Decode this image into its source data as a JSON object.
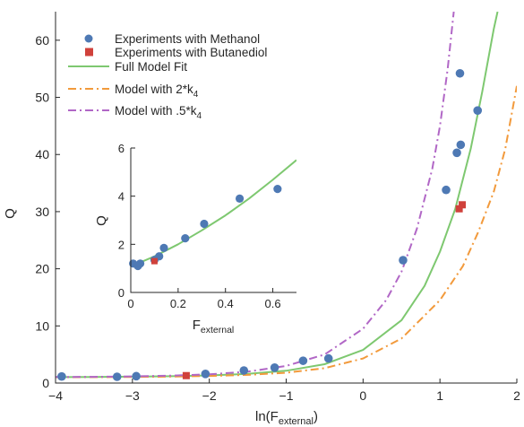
{
  "chart_data": [
    {
      "type": "line",
      "title": "",
      "xlabel_main": "ln(F",
      "xlabel_sub": "external",
      "xlabel_close": ")",
      "ylabel": "Q",
      "xlim": [
        -4,
        2
      ],
      "ylim": [
        0,
        65
      ],
      "xticks": [
        -4,
        -3,
        -2,
        -1,
        0,
        1,
        2
      ],
      "yticks": [
        0,
        10,
        20,
        30,
        40,
        50,
        60
      ],
      "xtick_labels": [
        "−4",
        "−3",
        "−2",
        "−1",
        "0",
        "1",
        "2"
      ],
      "ytick_labels": [
        "0",
        "10",
        "20",
        "30",
        "40",
        "50",
        "60"
      ],
      "legend_position": "top-left",
      "legend": {
        "methanol": "Experiments with Methanol",
        "butanediol": "Experiments with Butanediol",
        "full_fit": "Full Model Fit",
        "model_2k_prefix": "Model with 2*k",
        "model_2k_sub": "4",
        "model_half_prefix": "Model with .5*k",
        "model_half_sub": "4"
      },
      "series": [
        {
          "name": "Experiments with Methanol",
          "style": "markers-circle",
          "color": "#4e79b4",
          "points": [
            [
              -3.92,
              1.15
            ],
            [
              -3.2,
              1.1
            ],
            [
              -2.95,
              1.2
            ],
            [
              -2.05,
              1.6
            ],
            [
              -1.55,
              2.2
            ],
            [
              -1.15,
              2.7
            ],
            [
              -0.78,
              3.9
            ],
            [
              -0.45,
              4.3
            ],
            [
              0.52,
              21.5
            ],
            [
              1.08,
              33.8
            ],
            [
              1.22,
              40.3
            ],
            [
              1.26,
              54.2
            ],
            [
              1.27,
              41.7
            ],
            [
              1.49,
              47.7
            ]
          ]
        },
        {
          "name": "Experiments with Butanediol",
          "style": "markers-square",
          "color": "#d0413b",
          "points": [
            [
              -2.3,
              1.3
            ],
            [
              1.25,
              30.5
            ],
            [
              1.29,
              31.2
            ]
          ]
        },
        {
          "name": "Full Model Fit",
          "style": "solid",
          "color": "#7ec870",
          "points": [
            [
              -4.0,
              1.04
            ],
            [
              -3.5,
              1.06
            ],
            [
              -3.0,
              1.11
            ],
            [
              -2.5,
              1.2
            ],
            [
              -2.0,
              1.34
            ],
            [
              -1.5,
              1.6
            ],
            [
              -1.0,
              2.15
            ],
            [
              -0.5,
              3.3
            ],
            [
              0.0,
              5.8
            ],
            [
              0.5,
              11.0
            ],
            [
              0.8,
              17.0
            ],
            [
              1.0,
              23.0
            ],
            [
              1.2,
              30.5
            ],
            [
              1.4,
              41.0
            ],
            [
              1.55,
              51.0
            ],
            [
              1.7,
              62.0
            ],
            [
              1.75,
              65.0
            ]
          ]
        },
        {
          "name": "Model with 2*k4",
          "style": "dash-dot",
          "color": "#f29a3c",
          "points": [
            [
              -4.0,
              1.02
            ],
            [
              -3.5,
              1.04
            ],
            [
              -3.0,
              1.07
            ],
            [
              -2.5,
              1.13
            ],
            [
              -2.0,
              1.24
            ],
            [
              -1.5,
              1.43
            ],
            [
              -1.0,
              1.8
            ],
            [
              -0.5,
              2.6
            ],
            [
              0.0,
              4.3
            ],
            [
              0.5,
              7.8
            ],
            [
              1.0,
              14.5
            ],
            [
              1.3,
              20.5
            ],
            [
              1.5,
              26.5
            ],
            [
              1.7,
              33.5
            ],
            [
              1.85,
              41.0
            ],
            [
              2.0,
              52.0
            ]
          ]
        },
        {
          "name": "Model with .5*k4",
          "style": "dash-dot",
          "color": "#b167c6",
          "points": [
            [
              -4.0,
              1.05
            ],
            [
              -3.5,
              1.09
            ],
            [
              -3.0,
              1.16
            ],
            [
              -2.5,
              1.3
            ],
            [
              -2.0,
              1.52
            ],
            [
              -1.5,
              2.0
            ],
            [
              -1.0,
              3.0
            ],
            [
              -0.5,
              5.0
            ],
            [
              0.0,
              9.5
            ],
            [
              0.3,
              14.5
            ],
            [
              0.5,
              19.5
            ],
            [
              0.7,
              27.0
            ],
            [
              0.9,
              37.5
            ],
            [
              1.0,
              45.0
            ],
            [
              1.1,
              55.0
            ],
            [
              1.18,
              65.0
            ]
          ]
        }
      ]
    },
    {
      "type": "line",
      "title": "",
      "xlabel_main": "F",
      "xlabel_sub": "external",
      "ylabel": "Q",
      "xlim": [
        0,
        0.7
      ],
      "ylim": [
        0,
        6
      ],
      "xticks": [
        0,
        0.2,
        0.4,
        0.6
      ],
      "yticks": [
        0,
        2,
        4,
        6
      ],
      "xtick_labels": [
        "0",
        "0.2",
        "0.4",
        "0.6"
      ],
      "ytick_labels": [
        "0",
        "2",
        "4",
        "6"
      ],
      "series": [
        {
          "name": "Full Model Fit",
          "style": "solid",
          "color": "#7ec870",
          "points": [
            [
              0.0,
              1.08
            ],
            [
              0.1,
              1.5
            ],
            [
              0.2,
              2.0
            ],
            [
              0.3,
              2.58
            ],
            [
              0.4,
              3.2
            ],
            [
              0.5,
              3.9
            ],
            [
              0.6,
              4.68
            ],
            [
              0.7,
              5.5
            ]
          ]
        },
        {
          "name": "Experiments with Methanol",
          "style": "markers-circle",
          "color": "#4e79b4",
          "points": [
            [
              0.01,
              1.2
            ],
            [
              0.03,
              1.1
            ],
            [
              0.04,
              1.2
            ],
            [
              0.1,
              1.35
            ],
            [
              0.12,
              1.5
            ],
            [
              0.14,
              1.85
            ],
            [
              0.23,
              2.25
            ],
            [
              0.31,
              2.85
            ],
            [
              0.46,
              3.9
            ],
            [
              0.62,
              4.3
            ]
          ]
        },
        {
          "name": "Experiments with Butanediol",
          "style": "markers-square",
          "color": "#d0413b",
          "points": [
            [
              0.1,
              1.3
            ]
          ]
        }
      ]
    }
  ]
}
